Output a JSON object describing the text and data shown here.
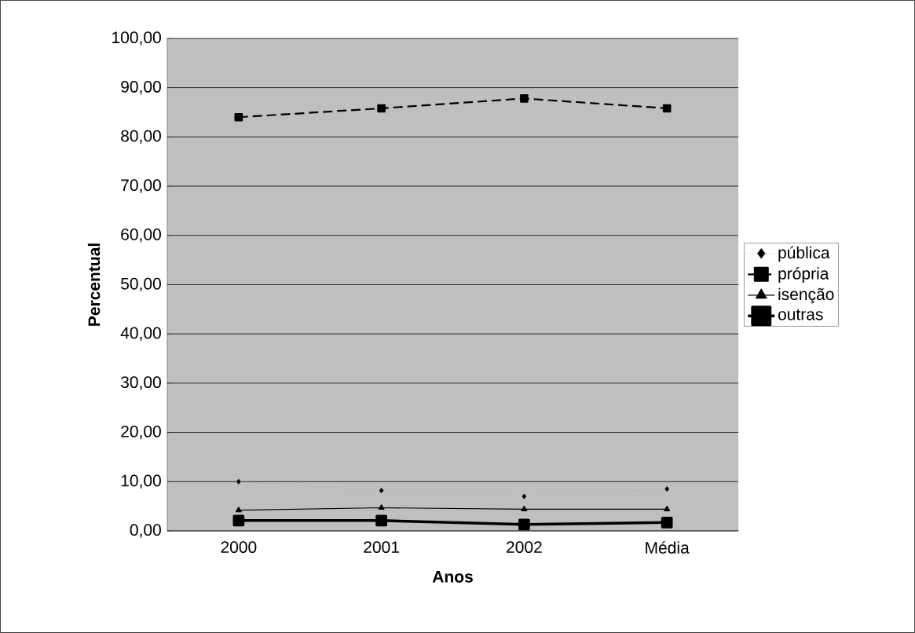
{
  "chart_data": {
    "type": "line",
    "xlabel": "Anos",
    "ylabel": "Percentual",
    "categories": [
      "2000",
      "2001",
      "2002",
      "Média"
    ],
    "series": [
      {
        "name": "pública",
        "color": "#a6a6a6",
        "marker": "diamond",
        "line_style": "dotted",
        "values": [
          10.0,
          8.2,
          7.0,
          8.5
        ]
      },
      {
        "name": "própria",
        "color": "#000000",
        "marker": "square",
        "line_style": "dashed",
        "values": [
          84.0,
          85.8,
          87.8,
          85.8
        ]
      },
      {
        "name": "isenção",
        "color": "#000000",
        "marker": "triangle",
        "line_style": "solid",
        "values": [
          4.2,
          4.7,
          4.4,
          4.4
        ]
      },
      {
        "name": "outras",
        "color": "#000000",
        "marker": "square",
        "line_style": "solid",
        "values": [
          2.1,
          2.1,
          1.3,
          1.7
        ]
      }
    ],
    "ylim": [
      0,
      100
    ],
    "yticks": [
      {
        "value": 0,
        "label": "0,00"
      },
      {
        "value": 10,
        "label": "10,00"
      },
      {
        "value": 20,
        "label": "20,00"
      },
      {
        "value": 30,
        "label": "30,00"
      },
      {
        "value": 40,
        "label": "40,00"
      },
      {
        "value": 50,
        "label": "50,00"
      },
      {
        "value": 60,
        "label": "60,00"
      },
      {
        "value": 70,
        "label": "70,00"
      },
      {
        "value": 80,
        "label": "80,00"
      },
      {
        "value": 90,
        "label": "90,00"
      },
      {
        "value": 100,
        "label": "100,00"
      }
    ],
    "grid": "y",
    "legend": "right"
  }
}
